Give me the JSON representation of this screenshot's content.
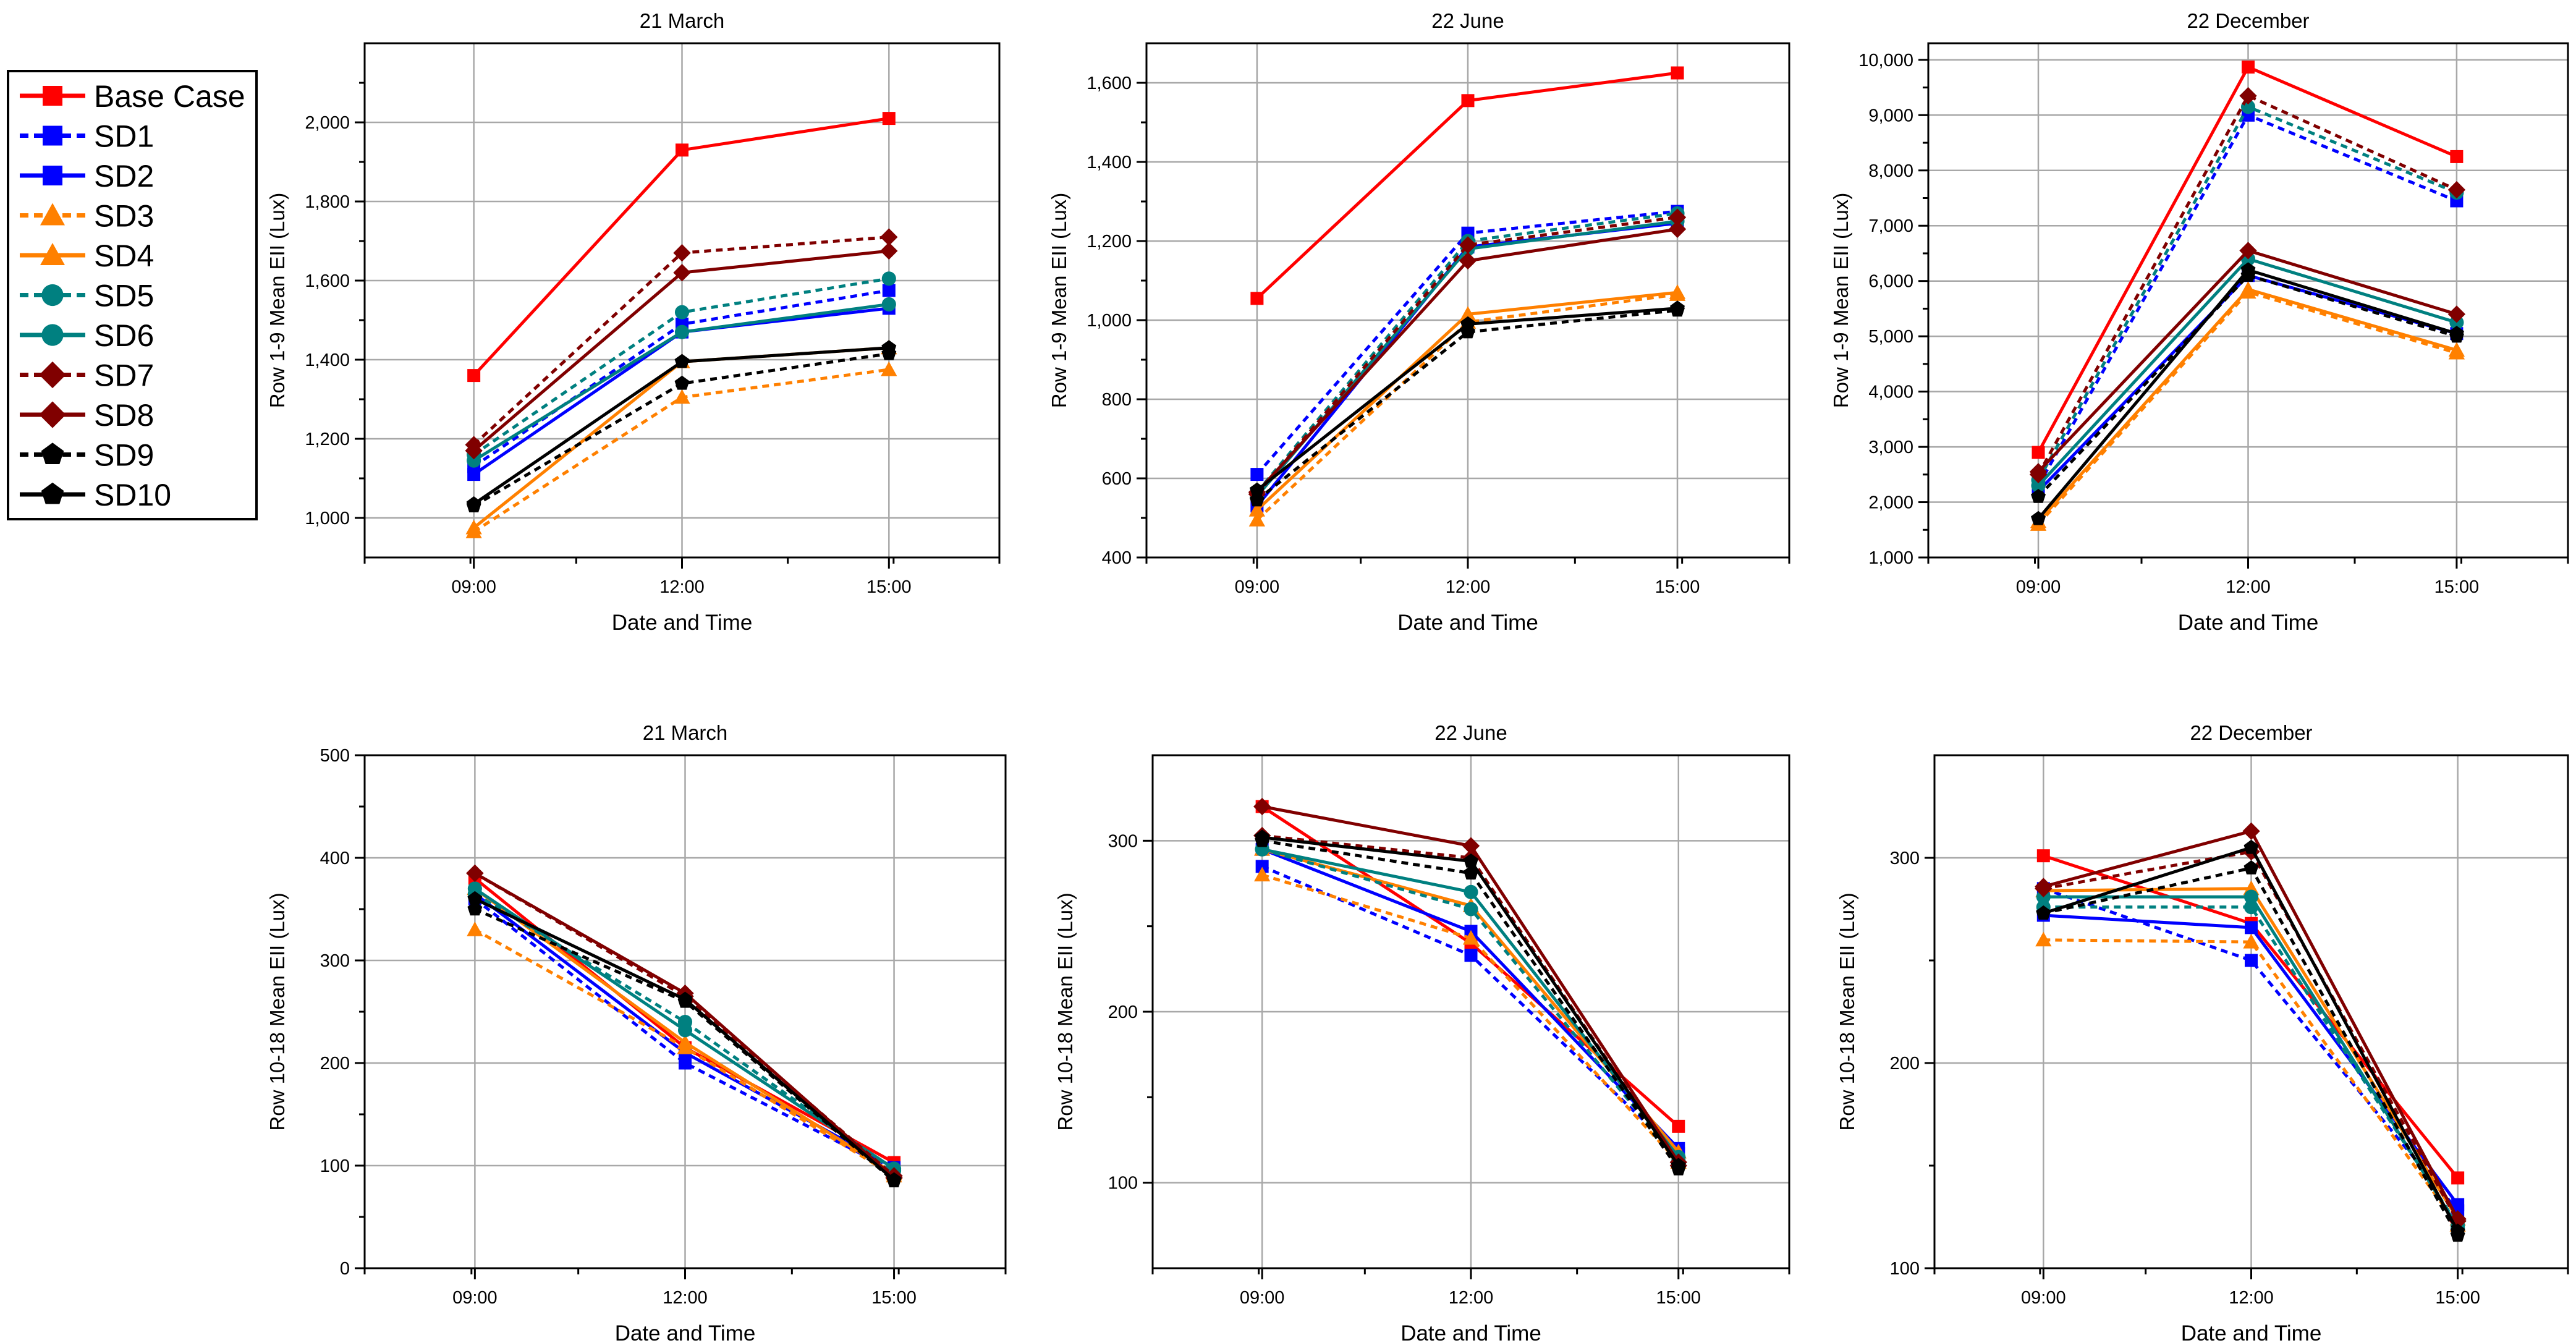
{
  "legend": {
    "entries": [
      {
        "name": "Base Case",
        "color": "#ff0000",
        "dash": false,
        "marker": "square"
      },
      {
        "name": "SD1",
        "color": "#0000ff",
        "dash": true,
        "marker": "square"
      },
      {
        "name": "SD2",
        "color": "#0000ff",
        "dash": false,
        "marker": "square"
      },
      {
        "name": "SD3",
        "color": "#ff8000",
        "dash": true,
        "marker": "triangle"
      },
      {
        "name": "SD4",
        "color": "#ff8000",
        "dash": false,
        "marker": "triangle"
      },
      {
        "name": "SD5",
        "color": "#008080",
        "dash": true,
        "marker": "circle"
      },
      {
        "name": "SD6",
        "color": "#008080",
        "dash": false,
        "marker": "circle"
      },
      {
        "name": "SD7",
        "color": "#800000",
        "dash": true,
        "marker": "diamond"
      },
      {
        "name": "SD8",
        "color": "#800000",
        "dash": false,
        "marker": "diamond"
      },
      {
        "name": "SD9",
        "color": "#000000",
        "dash": true,
        "marker": "pentagon"
      },
      {
        "name": "SD10",
        "color": "#000000",
        "dash": false,
        "marker": "pentagon"
      }
    ]
  },
  "chart_data": [
    {
      "type": "line",
      "title": "21 March",
      "xlabel": "Date and Time",
      "ylabel": "Row 1-9 Mean EII (Lux)",
      "categories": [
        "09:00",
        "12:00",
        "15:00"
      ],
      "ylim": [
        900,
        2200
      ],
      "yticks": [
        1000,
        1200,
        1400,
        1600,
        1800,
        2000
      ],
      "ytick_labels": [
        "1,000",
        "1,200",
        "1,400",
        "1,600",
        "1,800",
        "2,000"
      ],
      "series": [
        {
          "name": "Base Case",
          "values": [
            1360,
            1930,
            2010
          ]
        },
        {
          "name": "SD1",
          "values": [
            1130,
            1490,
            1575
          ]
        },
        {
          "name": "SD2",
          "values": [
            1110,
            1470,
            1530
          ]
        },
        {
          "name": "SD3",
          "values": [
            965,
            1305,
            1375
          ]
        },
        {
          "name": "SD4",
          "values": [
            975,
            1395,
            1430
          ]
        },
        {
          "name": "SD5",
          "values": [
            1160,
            1520,
            1605
          ]
        },
        {
          "name": "SD6",
          "values": [
            1145,
            1470,
            1540
          ]
        },
        {
          "name": "SD7",
          "values": [
            1185,
            1670,
            1710
          ]
        },
        {
          "name": "SD8",
          "values": [
            1170,
            1620,
            1675
          ]
        },
        {
          "name": "SD9",
          "values": [
            1030,
            1340,
            1415
          ]
        },
        {
          "name": "SD10",
          "values": [
            1035,
            1395,
            1430
          ]
        }
      ]
    },
    {
      "type": "line",
      "title": "22 June",
      "xlabel": "Date and Time",
      "ylabel": "Row 1-9 Mean EII (Lux)",
      "categories": [
        "09:00",
        "12:00",
        "15:00"
      ],
      "ylim": [
        400,
        1700
      ],
      "yticks": [
        400,
        600,
        800,
        1000,
        1200,
        1400,
        1600
      ],
      "ytick_labels": [
        "400",
        "600",
        "800",
        "1,000",
        "1,200",
        "1,400",
        "1,600"
      ],
      "series": [
        {
          "name": "Base Case",
          "values": [
            1055,
            1555,
            1625
          ]
        },
        {
          "name": "SD1",
          "values": [
            610,
            1220,
            1275
          ]
        },
        {
          "name": "SD2",
          "values": [
            530,
            1185,
            1245
          ]
        },
        {
          "name": "SD3",
          "values": [
            495,
            995,
            1065
          ]
        },
        {
          "name": "SD4",
          "values": [
            520,
            1015,
            1070
          ]
        },
        {
          "name": "SD5",
          "values": [
            565,
            1200,
            1270
          ]
        },
        {
          "name": "SD6",
          "values": [
            555,
            1180,
            1250
          ]
        },
        {
          "name": "SD7",
          "values": [
            560,
            1190,
            1260
          ]
        },
        {
          "name": "SD8",
          "values": [
            565,
            1150,
            1230
          ]
        },
        {
          "name": "SD9",
          "values": [
            545,
            970,
            1025
          ]
        },
        {
          "name": "SD10",
          "values": [
            570,
            990,
            1030
          ]
        }
      ]
    },
    {
      "type": "line",
      "title": "22 December",
      "xlabel": "Date and Time",
      "ylabel": "Row 1-9 Mean EII (Lux)",
      "categories": [
        "09:00",
        "12:00",
        "15:00"
      ],
      "ylim": [
        1000,
        10300
      ],
      "yticks": [
        1000,
        2000,
        3000,
        4000,
        5000,
        6000,
        7000,
        8000,
        9000,
        10000
      ],
      "ytick_labels": [
        "1,000",
        "2,000",
        "3,000",
        "4,000",
        "5,000",
        "6,000",
        "7,000",
        "8,000",
        "9,000",
        "10,000"
      ],
      "series": [
        {
          "name": "Base Case",
          "values": [
            2900,
            9870,
            8250
          ]
        },
        {
          "name": "SD1",
          "values": [
            2300,
            9000,
            7450
          ]
        },
        {
          "name": "SD2",
          "values": [
            2200,
            6100,
            5050
          ]
        },
        {
          "name": "SD3",
          "values": [
            1600,
            5800,
            4700
          ]
        },
        {
          "name": "SD4",
          "values": [
            1650,
            5850,
            4750
          ]
        },
        {
          "name": "SD5",
          "values": [
            2400,
            9150,
            7600
          ]
        },
        {
          "name": "SD6",
          "values": [
            2300,
            6400,
            5250
          ]
        },
        {
          "name": "SD7",
          "values": [
            2500,
            9350,
            7650
          ]
        },
        {
          "name": "SD8",
          "values": [
            2550,
            6550,
            5400
          ]
        },
        {
          "name": "SD9",
          "values": [
            2100,
            6100,
            5000
          ]
        },
        {
          "name": "SD10",
          "values": [
            1700,
            6200,
            5050
          ]
        }
      ]
    },
    {
      "type": "line",
      "title": "21 March",
      "xlabel": "Date and Time",
      "ylabel": "Row 10-18 Mean EII (Lux)",
      "categories": [
        "09:00",
        "12:00",
        "15:00"
      ],
      "ylim": [
        0,
        500
      ],
      "yticks": [
        0,
        100,
        200,
        300,
        400,
        500
      ],
      "ytick_labels": [
        "0",
        "100",
        "200",
        "300",
        "400",
        "500"
      ],
      "series": [
        {
          "name": "Base Case",
          "values": [
            380,
            215,
            103
          ]
        },
        {
          "name": "SD1",
          "values": [
            360,
            200,
            95
          ]
        },
        {
          "name": "SD2",
          "values": [
            365,
            210,
            98
          ]
        },
        {
          "name": "SD3",
          "values": [
            330,
            215,
            90
          ]
        },
        {
          "name": "SD4",
          "values": [
            370,
            220,
            92
          ]
        },
        {
          "name": "SD5",
          "values": [
            365,
            240,
            95
          ]
        },
        {
          "name": "SD6",
          "values": [
            370,
            232,
            97
          ]
        },
        {
          "name": "SD7",
          "values": [
            385,
            265,
            90
          ]
        },
        {
          "name": "SD8",
          "values": [
            385,
            268,
            88
          ]
        },
        {
          "name": "SD9",
          "values": [
            350,
            260,
            85
          ]
        },
        {
          "name": "SD10",
          "values": [
            360,
            262,
            86
          ]
        }
      ]
    },
    {
      "type": "line",
      "title": "22 June",
      "xlabel": "Date and Time",
      "ylabel": "Row 10-18 Mean EII (Lux)",
      "categories": [
        "09:00",
        "12:00",
        "15:00"
      ],
      "ylim": [
        50,
        350
      ],
      "yticks": [
        100,
        200,
        300
      ],
      "ytick_labels": [
        "100",
        "200",
        "300"
      ],
      "series": [
        {
          "name": "Base Case",
          "values": [
            320,
            240,
            133
          ]
        },
        {
          "name": "SD1",
          "values": [
            285,
            233,
            117
          ]
        },
        {
          "name": "SD2",
          "values": [
            295,
            247,
            120
          ]
        },
        {
          "name": "SD3",
          "values": [
            280,
            243,
            112
          ]
        },
        {
          "name": "SD4",
          "values": [
            295,
            262,
            118
          ]
        },
        {
          "name": "SD5",
          "values": [
            295,
            260,
            113
          ]
        },
        {
          "name": "SD6",
          "values": [
            295,
            270,
            115
          ]
        },
        {
          "name": "SD7",
          "values": [
            303,
            290,
            110
          ]
        },
        {
          "name": "SD8",
          "values": [
            320,
            297,
            112
          ]
        },
        {
          "name": "SD9",
          "values": [
            300,
            281,
            108
          ]
        },
        {
          "name": "SD10",
          "values": [
            302,
            288,
            110
          ]
        }
      ]
    },
    {
      "type": "line",
      "title": "22 December",
      "xlabel": "Date and Time",
      "ylabel": "Row 10-18 Mean EII (Lux)",
      "categories": [
        "09:00",
        "12:00",
        "15:00"
      ],
      "ylim": [
        100,
        350
      ],
      "yticks": [
        100,
        200,
        300
      ],
      "ytick_labels": [
        "100",
        "200",
        "300"
      ],
      "series": [
        {
          "name": "Base Case",
          "values": [
            301,
            268,
            144
          ]
        },
        {
          "name": "SD1",
          "values": [
            285,
            250,
            128
          ]
        },
        {
          "name": "SD2",
          "values": [
            272,
            266,
            131
          ]
        },
        {
          "name": "SD3",
          "values": [
            260,
            259,
            121
          ]
        },
        {
          "name": "SD4",
          "values": [
            284,
            285,
            124
          ]
        },
        {
          "name": "SD5",
          "values": [
            276,
            276,
            121
          ]
        },
        {
          "name": "SD6",
          "values": [
            281,
            281,
            120
          ]
        },
        {
          "name": "SD7",
          "values": [
            285,
            303,
            123
          ]
        },
        {
          "name": "SD8",
          "values": [
            286,
            313,
            124
          ]
        },
        {
          "name": "SD9",
          "values": [
            273,
            295,
            116
          ]
        },
        {
          "name": "SD10",
          "values": [
            273,
            305,
            118
          ]
        }
      ]
    }
  ]
}
